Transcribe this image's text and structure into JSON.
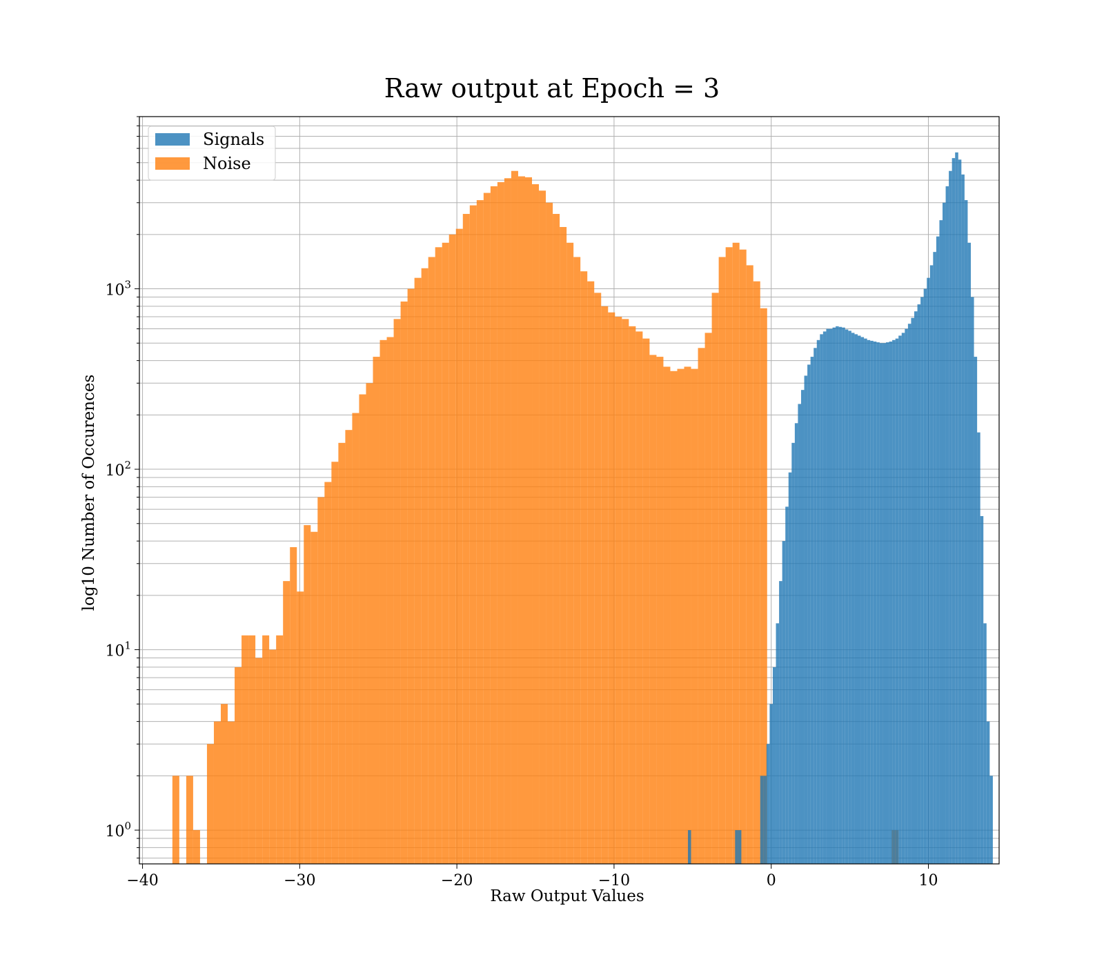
{
  "chart_data": {
    "type": "histogram",
    "title": "Raw output at Epoch = 3",
    "xlabel": "Raw Output Values",
    "ylabel": "log10 Number of Occurences",
    "yscale": "log",
    "xlim": [
      -40.2,
      14.5
    ],
    "ylim": [
      0.65,
      9000
    ],
    "grid": "on (major and minor)",
    "legend": {
      "placement": "upper-left"
    },
    "x_ticks": [
      {
        "value": -40,
        "label": "−40"
      },
      {
        "value": -30,
        "label": "−30"
      },
      {
        "value": -20,
        "label": "−20"
      },
      {
        "value": -10,
        "label": "−10"
      },
      {
        "value": 0,
        "label": "0"
      },
      {
        "value": 10,
        "label": "10"
      }
    ],
    "y_ticks": [
      {
        "value": 1,
        "base": "10",
        "exp": "0"
      },
      {
        "value": 10,
        "base": "10",
        "exp": "1"
      },
      {
        "value": 100,
        "base": "10",
        "exp": "2"
      },
      {
        "value": 1000,
        "base": "10",
        "exp": "3"
      }
    ],
    "series": [
      {
        "name": "Noise",
        "color": "#ff7f0e",
        "opacity": 0.8,
        "bin_start": -38.1,
        "bin_width": 0.44,
        "counts": [
          2,
          0,
          2,
          1,
          0,
          3,
          4,
          5,
          4,
          8,
          12,
          12,
          9,
          12,
          10,
          12,
          24,
          37,
          21,
          49,
          45,
          70,
          85,
          110,
          140,
          165,
          205,
          260,
          300,
          420,
          520,
          540,
          680,
          850,
          1000,
          1150,
          1300,
          1500,
          1700,
          1800,
          2000,
          2150,
          2600,
          2900,
          3100,
          3400,
          3700,
          3900,
          4100,
          4500,
          4200,
          4150,
          3800,
          3500,
          3000,
          2600,
          2200,
          1800,
          1500,
          1250,
          1100,
          950,
          800,
          740,
          700,
          680,
          620,
          580,
          530,
          430,
          420,
          370,
          350,
          360,
          370,
          360,
          470,
          570,
          950,
          1500,
          1700,
          1800,
          1650,
          1350,
          1100,
          780,
          0,
          0,
          0,
          0,
          0,
          0,
          0,
          0,
          0,
          0,
          0,
          0,
          0,
          0,
          0,
          0,
          0,
          0,
          1
        ]
      },
      {
        "name": "Signals",
        "color": "#1f77b4",
        "opacity": 0.8,
        "bin_start": -5.3,
        "bin_width": 0.2,
        "counts": [
          1,
          0,
          0,
          0,
          0,
          0,
          0,
          0,
          0,
          0,
          0,
          0,
          0,
          0,
          0,
          1,
          1,
          0,
          0,
          0,
          0,
          0,
          0,
          2,
          2,
          3,
          5,
          8,
          14,
          24,
          40,
          62,
          96,
          140,
          180,
          230,
          275,
          330,
          380,
          420,
          470,
          520,
          560,
          580,
          600,
          600,
          610,
          620,
          615,
          610,
          595,
          585,
          570,
          560,
          550,
          540,
          530,
          520,
          515,
          510,
          505,
          500,
          500,
          505,
          510,
          520,
          530,
          550,
          570,
          600,
          640,
          690,
          750,
          820,
          900,
          1000,
          1150,
          1350,
          1600,
          1950,
          2400,
          3000,
          3700,
          4500,
          5300,
          5700,
          5200,
          4300,
          3100,
          1800,
          900,
          420,
          160,
          55,
          14,
          4,
          2
        ]
      }
    ]
  }
}
